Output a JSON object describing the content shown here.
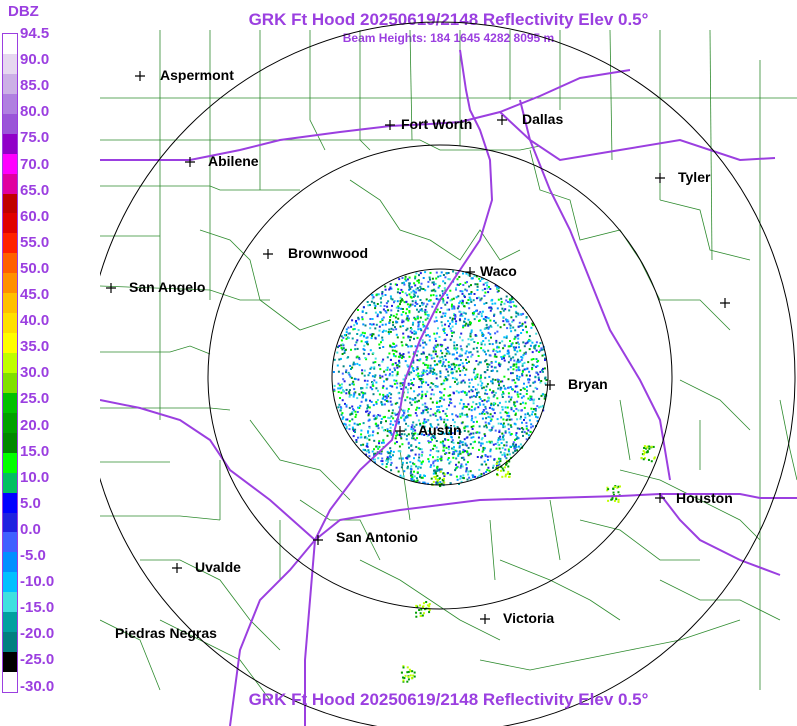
{
  "title": "GRK Ft Hood 20250619/2148 Reflectivity Elev 0.5°",
  "subtitle": "Beam Heights: 184 1645 4282 8095 m",
  "bottom_title": "GRK Ft Hood 20250619/2148 Reflectivity Elev 0.5°",
  "legend": {
    "label": "DBZ",
    "ticks": [
      "94.5",
      "90.0",
      "85.0",
      "80.0",
      "75.0",
      "70.0",
      "65.0",
      "60.0",
      "55.0",
      "50.0",
      "45.0",
      "40.0",
      "35.0",
      "30.0",
      "25.0",
      "20.0",
      "15.0",
      "10.0",
      "5.0",
      "0.0",
      "-5.0",
      "-10.0",
      "-15.0",
      "-20.0",
      "-25.0",
      "-30.0"
    ],
    "colors": [
      "#ffffff",
      "#e6d8f0",
      "#ccb0e6",
      "#b080e0",
      "#9a55d8",
      "#9000c8",
      "#ff00ff",
      "#e000a0",
      "#c00000",
      "#e00000",
      "#ff2000",
      "#ff6000",
      "#ff9000",
      "#ffc000",
      "#ffe000",
      "#ffff00",
      "#c0ff00",
      "#80e000",
      "#00c000",
      "#00a000",
      "#008800",
      "#00ff00",
      "#00c060",
      "#0000ff",
      "#2020e0",
      "#4060ff",
      "#0090ff",
      "#00c0ff",
      "#40e0e0",
      "#00a0a0",
      "#008080",
      "#000000",
      "#ffffff"
    ]
  },
  "cities": [
    {
      "name": "Aspermont"
    },
    {
      "name": "Fort Worth"
    },
    {
      "name": "Dallas"
    },
    {
      "name": "Abilene"
    },
    {
      "name": "Tyler"
    },
    {
      "name": "Brownwood"
    },
    {
      "name": "Waco"
    },
    {
      "name": "San Angelo"
    },
    {
      "name": "Bryan"
    },
    {
      "name": "Austin"
    },
    {
      "name": "Houston"
    },
    {
      "name": "San Antonio"
    },
    {
      "name": "Uvalde"
    },
    {
      "name": "Victoria"
    },
    {
      "name": "Piedras Negras"
    }
  ],
  "colors": {
    "title": "#9b3fe0",
    "county_lines": "#2e8b2e",
    "highways": "#9b3fe0",
    "range_rings": "#000000"
  }
}
